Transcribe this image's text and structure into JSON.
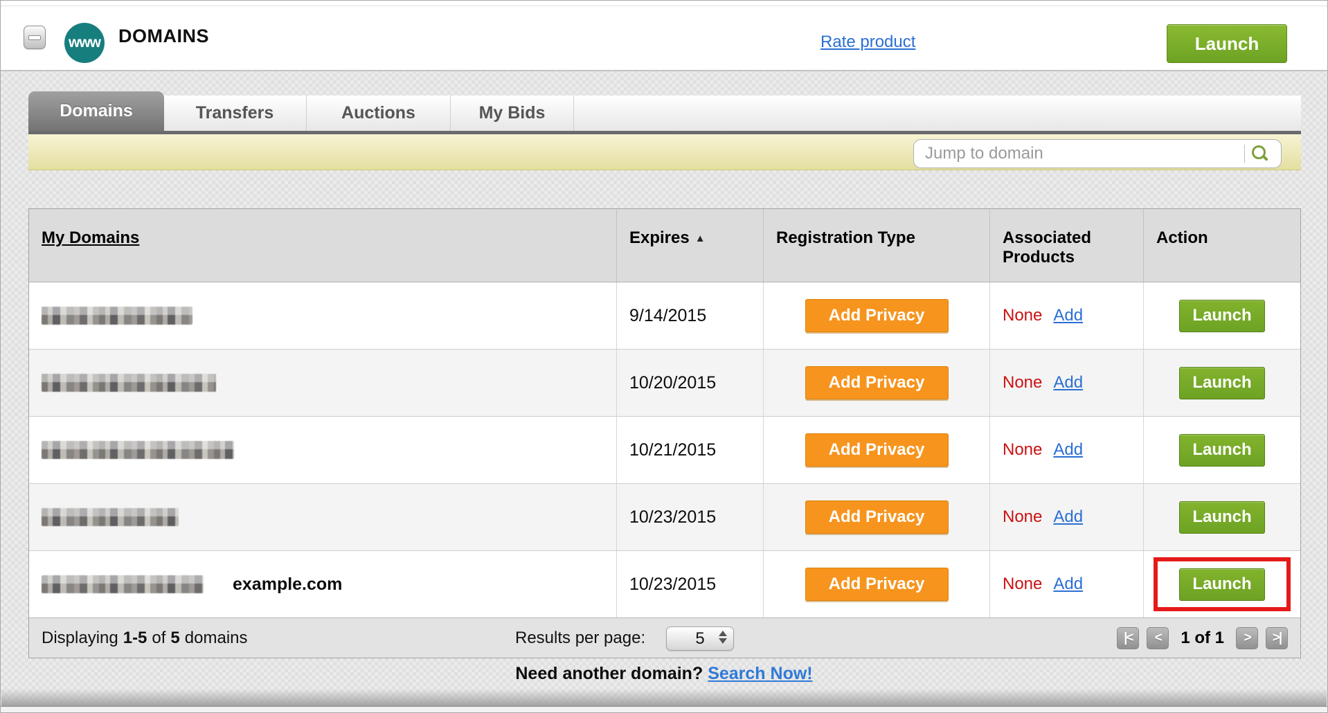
{
  "header": {
    "title": "DOMAINS",
    "icon_label": "www",
    "rate_product_link": "Rate product",
    "launch_button_label": "Launch"
  },
  "tabs": {
    "items": [
      {
        "label": "Domains",
        "active": true
      },
      {
        "label": "Transfers",
        "active": false
      },
      {
        "label": "Auctions",
        "active": false
      },
      {
        "label": "My Bids",
        "active": false
      }
    ]
  },
  "search": {
    "placeholder": "Jump to domain",
    "icon": "magnifier-icon"
  },
  "table": {
    "columns": {
      "domains": "My Domains",
      "expires": "Expires",
      "sort_indicator": "▲",
      "registration": "Registration Type",
      "associated": "Associated Products",
      "action": "Action"
    },
    "rows": [
      {
        "domain": "[redacted]",
        "redacted_width": 218,
        "annotation": "",
        "expires": "9/14/2015",
        "privacy_button": "Add Privacy",
        "associated_value": "None",
        "add_link": "Add",
        "action_button": "Launch",
        "highlighted": false
      },
      {
        "domain": "[redacted]",
        "redacted_width": 252,
        "annotation": "",
        "expires": "10/20/2015",
        "privacy_button": "Add Privacy",
        "associated_value": "None",
        "add_link": "Add",
        "action_button": "Launch",
        "highlighted": false
      },
      {
        "domain": "[redacted]",
        "redacted_width": 278,
        "annotation": "",
        "expires": "10/21/2015",
        "privacy_button": "Add Privacy",
        "associated_value": "None",
        "add_link": "Add",
        "action_button": "Launch",
        "highlighted": false
      },
      {
        "domain": "[redacted]",
        "redacted_width": 198,
        "annotation": "",
        "expires": "10/23/2015",
        "privacy_button": "Add Privacy",
        "associated_value": "None",
        "add_link": "Add",
        "action_button": "Launch",
        "highlighted": false
      },
      {
        "domain": "[redacted]",
        "redacted_width": 234,
        "annotation": "example.com",
        "expires": "10/23/2015",
        "privacy_button": "Add Privacy",
        "associated_value": "None",
        "add_link": "Add",
        "action_button": "Launch",
        "highlighted": true
      }
    ]
  },
  "footer": {
    "displaying": {
      "prefix": "Displaying",
      "range": "1-5",
      "middle": "of",
      "total": "5",
      "suffix": "domains"
    },
    "results_per_page_label": "Results per page:",
    "results_per_page_value": "5",
    "pagination": {
      "first": "|<",
      "prev": "<",
      "status": "1 of 1",
      "next": ">",
      "last": ">|"
    }
  },
  "bottom_prompt": {
    "text": "Need another domain?",
    "link": "Search Now!"
  },
  "colors": {
    "accent_green": "#76ac28",
    "accent_orange": "#f7941e",
    "link_blue": "#2b6fd4",
    "alert_red": "#cc1111",
    "highlight_red": "#e51a1a",
    "brand_teal": "#177e7e",
    "toolbar_yellow": "#ece7ae"
  }
}
